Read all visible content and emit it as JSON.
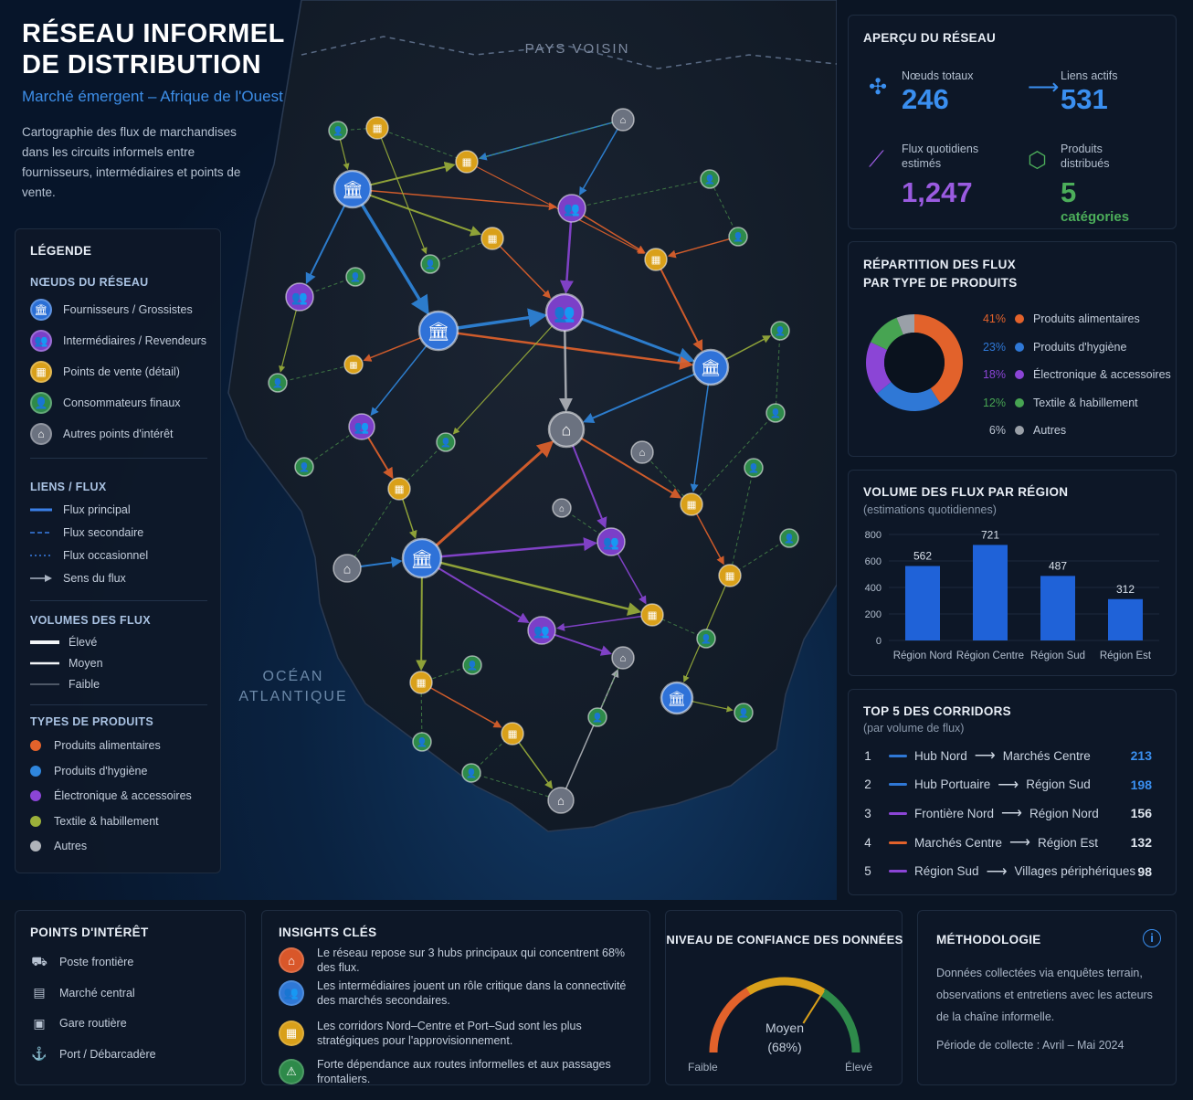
{
  "header": {
    "title": "RÉSEAU INFORMEL\nDE DISTRIBUTION",
    "subtitle": "Marché émergent – Afrique de l'Ouest",
    "description": "Cartographie des flux de marchandises dans les circuits informels entre fournisseurs, intermédiaires et points de vente."
  },
  "map": {
    "label_neighbor": "PAYS VOISIN",
    "label_ocean_1": "OCÉAN",
    "label_ocean_2": "ATLANTIQUE"
  },
  "legend": {
    "title": "LÉGENDE",
    "nodes_title": "NŒUDS DU RÉSEAU",
    "nodes": [
      {
        "label": "Fournisseurs / Grossistes",
        "color": "#2a6fd6",
        "icon": "bank-icon",
        "glyph": "🏛"
      },
      {
        "label": "Intermédiaires / Revendeurs",
        "color": "#7b3fc8",
        "icon": "group-icon",
        "glyph": "👥"
      },
      {
        "label": "Points de vente (détail)",
        "color": "#d9a01a",
        "icon": "shop-icon",
        "glyph": "▦"
      },
      {
        "label": "Consommateurs finaux",
        "color": "#2e8a4a",
        "icon": "people-icon",
        "glyph": "👤"
      },
      {
        "label": "Autres points d'intérêt",
        "color": "#6b7280",
        "icon": "landmark-icon",
        "glyph": "⌂"
      }
    ],
    "links_title": "LIENS / FLUX",
    "links": [
      {
        "label": "Flux principal",
        "style": "solid"
      },
      {
        "label": "Flux secondaire",
        "style": "dashed"
      },
      {
        "label": "Flux occasionnel",
        "style": "dotted"
      },
      {
        "label": "Sens du flux",
        "style": "arrow"
      }
    ],
    "volumes_title": "VOLUMES DES FLUX",
    "volumes": [
      {
        "label": "Élevé",
        "weight": "thick"
      },
      {
        "label": "Moyen",
        "weight": "medium"
      },
      {
        "label": "Faible",
        "weight": "thin"
      }
    ],
    "products_title": "TYPES DE PRODUITS",
    "products": [
      {
        "label": "Produits alimentaires",
        "color": "#e2622b"
      },
      {
        "label": "Produits d'hygiène",
        "color": "#2f86dd"
      },
      {
        "label": "Électronique & accessoires",
        "color": "#8b45d6"
      },
      {
        "label": "Textile & habillement",
        "color": "#9bb03a"
      },
      {
        "label": "Autres",
        "color": "#b0b4ba"
      }
    ]
  },
  "overview": {
    "title": "APERÇU DU RÉSEAU",
    "kpis": [
      {
        "label": "Nœuds totaux",
        "value": "246",
        "color": "#3a8ff0",
        "icon": "network-icon"
      },
      {
        "label": "Liens actifs",
        "value": "531",
        "color": "#3a8ff0",
        "icon": "arrow-icon"
      },
      {
        "label": "Flux quotidiens estimés",
        "value": "1,247",
        "color": "#9a5be0",
        "icon": "chart-line-icon"
      },
      {
        "label": "Produits distribués",
        "value": "5",
        "unit": "catégories",
        "color": "#4cae5a",
        "icon": "box-icon"
      }
    ]
  },
  "distribution": {
    "title_1": "RÉPARTITION DES FLUX",
    "title_2": "PAR TYPE DE PRODUITS",
    "items": [
      {
        "pct": "41%",
        "label": "Produits alimentaires",
        "value": 41,
        "color": "#e2622b"
      },
      {
        "pct": "23%",
        "label": "Produits d'hygiène",
        "value": 23,
        "color": "#2f78d6"
      },
      {
        "pct": "18%",
        "label": "Électronique & accessoires",
        "value": 18,
        "color": "#8b45d6"
      },
      {
        "pct": "12%",
        "label": "Textile & habillement",
        "value": 12,
        "color": "#47a452"
      },
      {
        "pct": "6%",
        "label": "Autres",
        "value": 6,
        "color": "#9aa0a8"
      }
    ]
  },
  "chart_data": {
    "type": "bar",
    "title": "VOLUME DES FLUX PAR RÉGION",
    "subtitle": "(estimations quotidiennes)",
    "categories": [
      "Région Nord",
      "Région Centre",
      "Région Sud",
      "Région Est"
    ],
    "values": [
      562,
      721,
      487,
      312
    ],
    "ylim": [
      0,
      800
    ],
    "yticks": [
      0,
      200,
      400,
      600,
      800
    ],
    "xlabel": "",
    "ylabel": "",
    "color": "#1f62d8"
  },
  "corridors": {
    "title": "TOP 5 DES CORRIDORS",
    "subtitle": "(par volume de flux)",
    "rows": [
      {
        "rank": "1",
        "from": "Hub Nord",
        "to": "Marchés Centre",
        "value": "213",
        "color": "#2f78d6"
      },
      {
        "rank": "2",
        "from": "Hub Portuaire",
        "to": "Région Sud",
        "value": "198",
        "color": "#2f78d6"
      },
      {
        "rank": "3",
        "from": "Frontière Nord",
        "to": "Région Nord",
        "value": "156",
        "color": "#8b45d6"
      },
      {
        "rank": "4",
        "from": "Marchés Centre",
        "to": "Région Est",
        "value": "132",
        "color": "#e2622b"
      },
      {
        "rank": "5",
        "from": "Région Sud",
        "to": "Villages périphériques",
        "value": "98",
        "color": "#8b45d6"
      }
    ]
  },
  "poi": {
    "title": "POINTS D'INTÉRÊT",
    "items": [
      {
        "label": "Poste frontière",
        "icon": "border-post-icon",
        "glyph": "⛟"
      },
      {
        "label": "Marché central",
        "icon": "market-icon",
        "glyph": "▤"
      },
      {
        "label": "Gare routière",
        "icon": "bus-icon",
        "glyph": "▣"
      },
      {
        "label": "Port / Débarcadère",
        "icon": "anchor-icon",
        "glyph": "⚓"
      }
    ]
  },
  "insights": {
    "title": "INSIGHTS CLÉS",
    "items": [
      {
        "text": "Le réseau repose sur 3 hubs principaux qui concentrent 68% des flux.",
        "color": "#d9572a",
        "icon": "hub-icon",
        "glyph": "⌂"
      },
      {
        "text": "Les intermédiaires jouent un rôle critique dans la connectivité des marchés secondaires.",
        "color": "#2f78d6",
        "icon": "group-icon",
        "glyph": "👥"
      },
      {
        "text": "Les corridors Nord–Centre et Port–Sud sont les plus stratégiques pour l'approvisionnement.",
        "color": "#d9a01a",
        "icon": "route-icon",
        "glyph": "▦"
      },
      {
        "text": "Forte dépendance aux routes informelles et aux passages frontaliers.",
        "color": "#2e8a4a",
        "icon": "warning-icon",
        "glyph": "⚠"
      }
    ]
  },
  "confidence": {
    "title": "NIVEAU DE CONFIANCE DES DONNÉES",
    "level": "Moyen",
    "value_text": "(68%)",
    "value": 0.68,
    "low": "Faible",
    "high": "Élevé"
  },
  "methodology": {
    "title": "MÉTHODOLOGIE",
    "text": "Données collectées via enquêtes terrain, observations et entretiens avec les acteurs de la chaîne informelle.",
    "period": "Période de collecte : Avril – Mai 2024"
  }
}
